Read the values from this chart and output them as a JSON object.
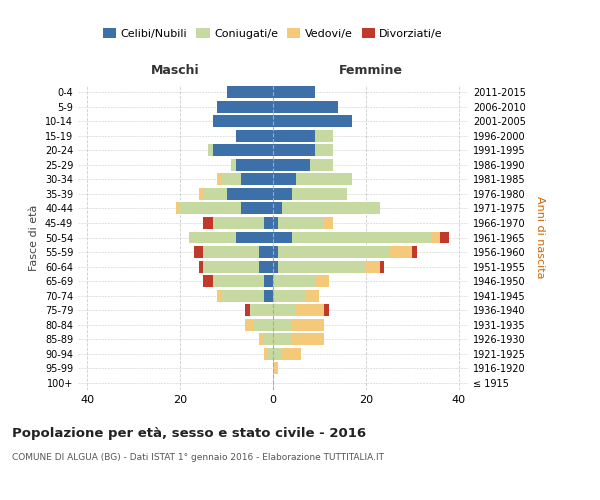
{
  "age_groups": [
    "100+",
    "95-99",
    "90-94",
    "85-89",
    "80-84",
    "75-79",
    "70-74",
    "65-69",
    "60-64",
    "55-59",
    "50-54",
    "45-49",
    "40-44",
    "35-39",
    "30-34",
    "25-29",
    "20-24",
    "15-19",
    "10-14",
    "5-9",
    "0-4"
  ],
  "birth_years": [
    "≤ 1915",
    "1916-1920",
    "1921-1925",
    "1926-1930",
    "1931-1935",
    "1936-1940",
    "1941-1945",
    "1946-1950",
    "1951-1955",
    "1956-1960",
    "1961-1965",
    "1966-1970",
    "1971-1975",
    "1976-1980",
    "1981-1985",
    "1986-1990",
    "1991-1995",
    "1996-2000",
    "2001-2005",
    "2006-2010",
    "2011-2015"
  ],
  "maschi": {
    "celibi": [
      0,
      0,
      0,
      0,
      0,
      0,
      2,
      2,
      3,
      3,
      8,
      2,
      7,
      10,
      7,
      8,
      13,
      8,
      13,
      12,
      10
    ],
    "coniugati": [
      0,
      0,
      1,
      2,
      4,
      5,
      9,
      11,
      12,
      12,
      10,
      11,
      13,
      5,
      4,
      1,
      1,
      0,
      0,
      0,
      0
    ],
    "vedovi": [
      0,
      0,
      1,
      1,
      2,
      0,
      1,
      0,
      0,
      0,
      0,
      0,
      1,
      1,
      1,
      0,
      0,
      0,
      0,
      0,
      0
    ],
    "divorziati": [
      0,
      0,
      0,
      0,
      0,
      1,
      0,
      2,
      1,
      2,
      0,
      2,
      0,
      0,
      0,
      0,
      0,
      0,
      0,
      0,
      0
    ]
  },
  "femmine": {
    "nubili": [
      0,
      0,
      0,
      0,
      0,
      0,
      0,
      0,
      1,
      1,
      4,
      1,
      2,
      4,
      5,
      8,
      9,
      9,
      17,
      14,
      9
    ],
    "coniugate": [
      0,
      0,
      2,
      4,
      4,
      5,
      7,
      9,
      19,
      24,
      30,
      10,
      21,
      12,
      12,
      5,
      4,
      4,
      0,
      0,
      0
    ],
    "vedove": [
      0,
      1,
      4,
      7,
      7,
      6,
      3,
      3,
      3,
      5,
      2,
      2,
      0,
      0,
      0,
      0,
      0,
      0,
      0,
      0,
      0
    ],
    "divorziate": [
      0,
      0,
      0,
      0,
      0,
      1,
      0,
      0,
      1,
      1,
      2,
      0,
      0,
      0,
      0,
      0,
      0,
      0,
      0,
      0,
      0
    ]
  },
  "colors": {
    "celibi_nubili": "#3d6fa8",
    "coniugati": "#c5d9a0",
    "vedovi": "#f5c97a",
    "divorziati": "#c0392b"
  },
  "title": "Popolazione per età, sesso e stato civile - 2016",
  "subtitle": "COMUNE DI ALGUA (BG) - Dati ISTAT 1° gennaio 2016 - Elaborazione TUTTITALIA.IT",
  "xlabel_left": "Maschi",
  "xlabel_right": "Femmine",
  "ylabel_left": "Fasce di età",
  "ylabel_right": "Anni di nascita",
  "xlim": 42,
  "background_color": "#ffffff",
  "grid_color": "#cccccc"
}
